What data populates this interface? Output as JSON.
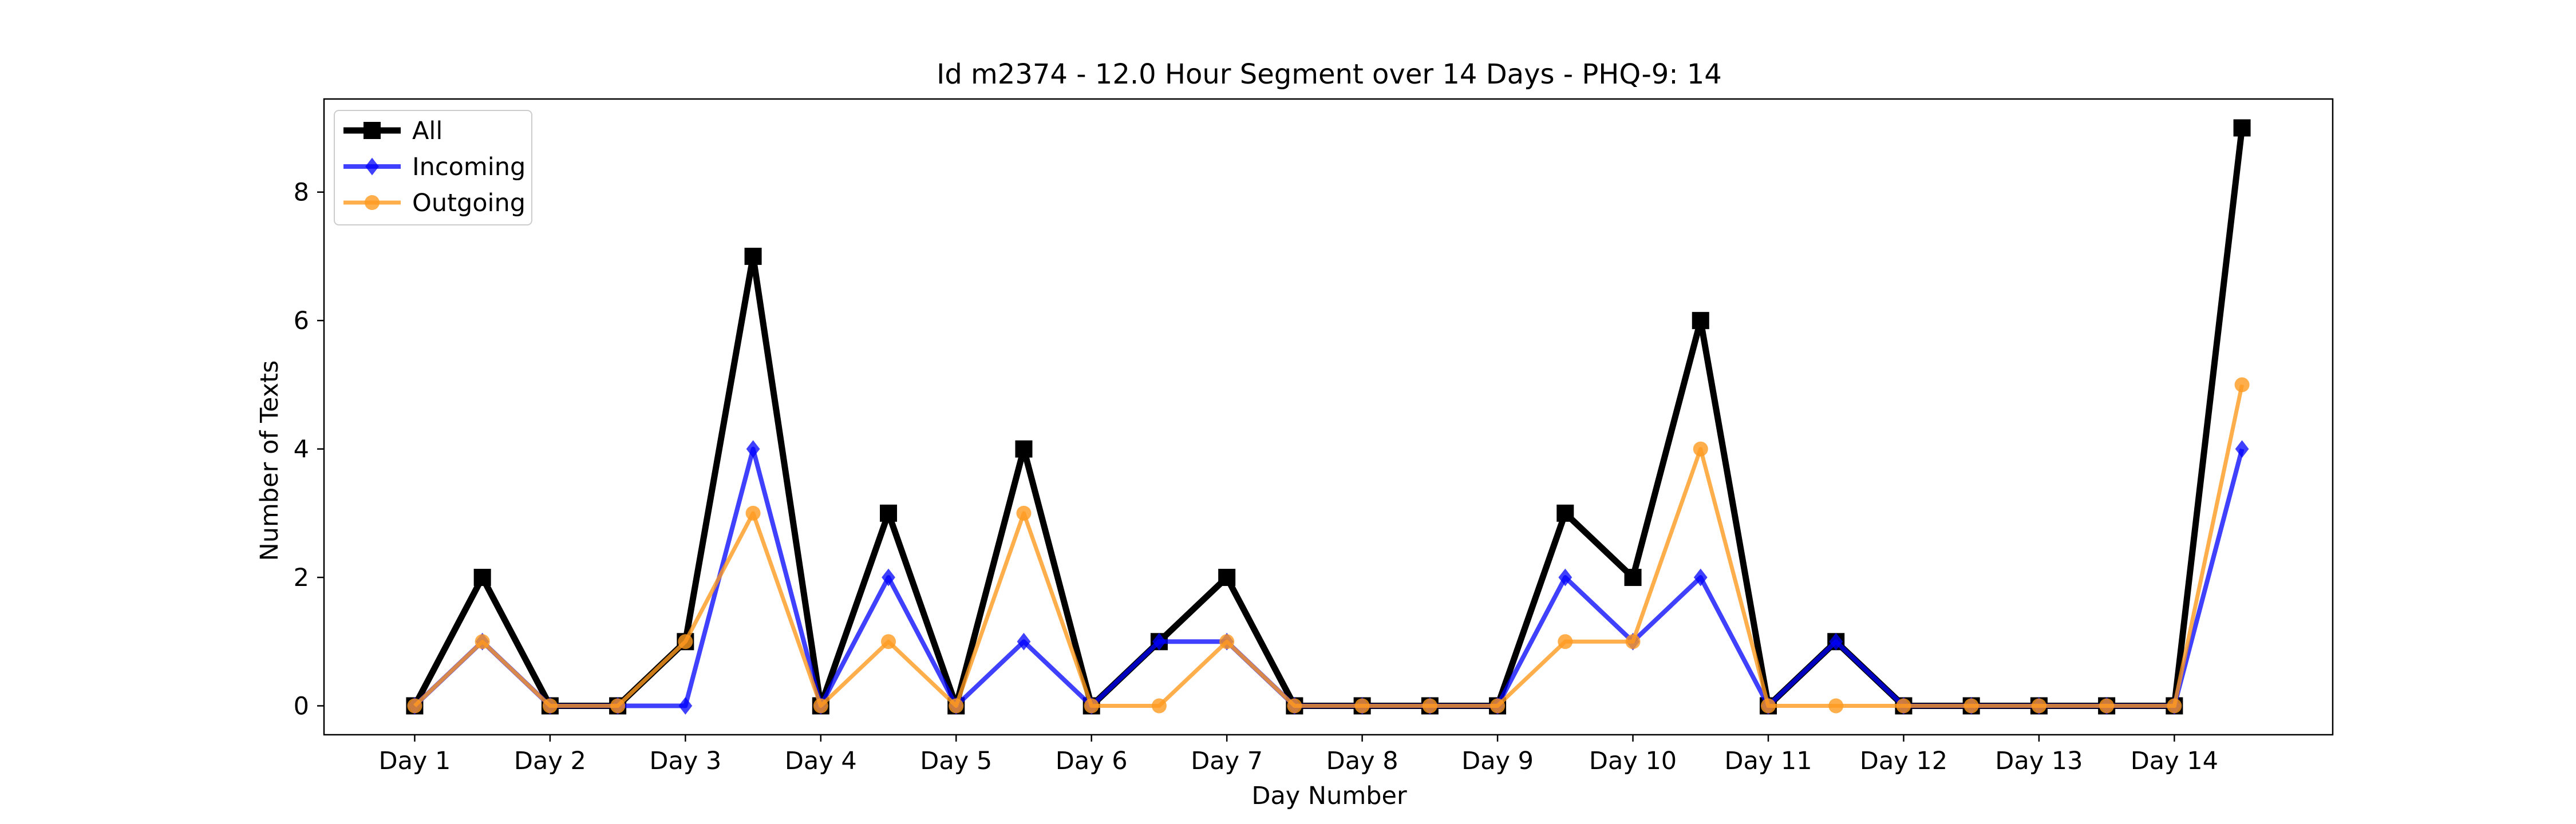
{
  "chart_data": {
    "type": "line",
    "title": "Id m2374 - 12.0 Hour Segment over 14 Days - PHQ-9: 14",
    "xlabel": "Day Number",
    "ylabel": "Number of Texts",
    "x": [
      1,
      1.5,
      2,
      2.5,
      3,
      3.5,
      4,
      4.5,
      5,
      5.5,
      6,
      6.5,
      7,
      7.5,
      8,
      8.5,
      9,
      9.5,
      10,
      10.5,
      11,
      11.5,
      12,
      12.5,
      13,
      13.5,
      14,
      14.5
    ],
    "xticks": [
      1,
      2,
      3,
      4,
      5,
      6,
      7,
      8,
      9,
      10,
      11,
      12,
      13,
      14
    ],
    "xtick_labels": [
      "Day 1",
      "Day 2",
      "Day 3",
      "Day 4",
      "Day 5",
      "Day 6",
      "Day 7",
      "Day 8",
      "Day 9",
      "Day 10",
      "Day 11",
      "Day 12",
      "Day 13",
      "Day 14"
    ],
    "yticks": [
      0,
      2,
      4,
      6,
      8
    ],
    "ytick_labels": [
      "0",
      "2",
      "4",
      "6",
      "8"
    ],
    "xlim": [
      0.33,
      15.17
    ],
    "ylim": [
      -0.45,
      9.45
    ],
    "grid": false,
    "legend": "top-left",
    "series": [
      {
        "name": "All",
        "color": "#000000",
        "marker": "square",
        "values": [
          0,
          2,
          0,
          0,
          1,
          7,
          0,
          3,
          0,
          4,
          0,
          1,
          2,
          0,
          0,
          0,
          0,
          3,
          2,
          6,
          0,
          1,
          0,
          0,
          0,
          0,
          0,
          9
        ]
      },
      {
        "name": "Incoming",
        "color": "#0000ff",
        "marker": "diamond",
        "values": [
          0,
          1,
          0,
          0,
          0,
          4,
          0,
          2,
          0,
          1,
          0,
          1,
          1,
          0,
          0,
          0,
          0,
          2,
          1,
          2,
          0,
          1,
          0,
          0,
          0,
          0,
          0,
          4
        ]
      },
      {
        "name": "Outgoing",
        "color": "#ff9a1f",
        "marker": "circle",
        "values": [
          0,
          1,
          0,
          0,
          1,
          3,
          0,
          1,
          0,
          3,
          0,
          0,
          1,
          0,
          0,
          0,
          0,
          1,
          1,
          4,
          0,
          0,
          0,
          0,
          0,
          0,
          0,
          5
        ]
      }
    ]
  }
}
